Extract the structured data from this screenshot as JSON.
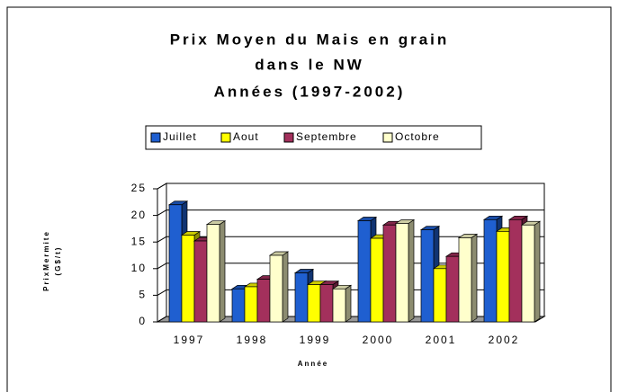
{
  "chart_data": {
    "type": "bar3d",
    "title": [
      "Prix Moyen du Mais en grain",
      "dans le NW",
      "Années (1997-2002)"
    ],
    "x_label": "Année",
    "y_label": [
      "PrixMermite",
      "(G$/t)"
    ],
    "categories": [
      "1997",
      "1998",
      "1999",
      "2000",
      "2001",
      "2002"
    ],
    "series": [
      {
        "name": "Juillet",
        "color": "#1f5fd0",
        "values": [
          22,
          6.2,
          9.2,
          19,
          17.3,
          19.2
        ]
      },
      {
        "name": "Aout",
        "color": "#ffff00",
        "values": [
          16.3,
          6.6,
          7,
          15.7,
          10,
          17
        ]
      },
      {
        "name": "Septembre",
        "color": "#a3305c",
        "values": [
          15.2,
          8,
          7,
          18.2,
          12.3,
          19.2
        ]
      },
      {
        "name": "Octobre",
        "color": "#ffffcc",
        "values": [
          18.3,
          12.5,
          6.2,
          18.5,
          15.8,
          18.2
        ]
      }
    ],
    "ylim": [
      0,
      25
    ],
    "yticks": [
      0,
      5,
      10,
      15,
      20,
      25
    ],
    "grid": true
  }
}
